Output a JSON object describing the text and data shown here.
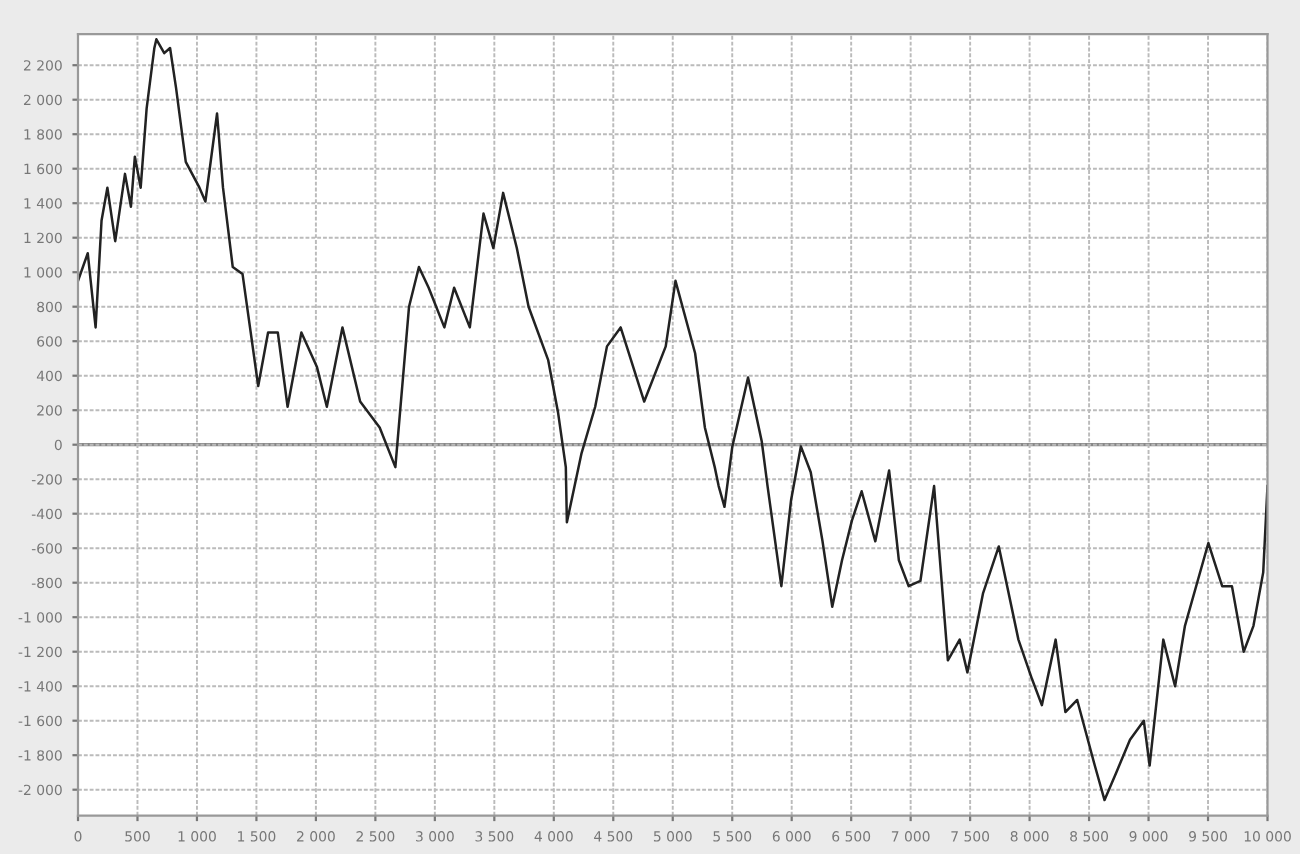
{
  "chart_data": {
    "type": "line",
    "xlim": [
      0,
      10000
    ],
    "ylim": [
      -2150,
      2380
    ],
    "xticks": [
      0,
      500,
      {
        "value": 1000,
        "label": "1 000"
      },
      {
        "value": 1500,
        "label": "1 500"
      },
      {
        "value": 2000,
        "label": "2 000"
      },
      {
        "value": 2500,
        "label": "2 500"
      },
      {
        "value": 3000,
        "label": "3 000"
      },
      {
        "value": 3500,
        "label": "3 500"
      },
      {
        "value": 4000,
        "label": "4 000"
      },
      {
        "value": 4500,
        "label": "4 500"
      },
      {
        "value": 5000,
        "label": "5 000"
      },
      {
        "value": 5500,
        "label": "5 500"
      },
      {
        "value": 6000,
        "label": "6 000"
      },
      {
        "value": 6500,
        "label": "6 500"
      },
      {
        "value": 7000,
        "label": "7 000"
      },
      {
        "value": 7500,
        "label": "7 500"
      },
      {
        "value": 8000,
        "label": "8 000"
      },
      {
        "value": 8500,
        "label": "8 500"
      },
      {
        "value": 9000,
        "label": "9 000"
      },
      {
        "value": 9500,
        "label": "9 500"
      },
      {
        "value": 10000,
        "label": "10 000"
      }
    ],
    "yticks": [
      {
        "value": -2000,
        "label": "-2 000"
      },
      {
        "value": -1800,
        "label": "-1 800"
      },
      {
        "value": -1600,
        "label": "-1 600"
      },
      {
        "value": -1400,
        "label": "-1 400"
      },
      {
        "value": -1200,
        "label": "-1 200"
      },
      {
        "value": -1000,
        "label": "-1 000"
      },
      -800,
      -600,
      -400,
      -200,
      0,
      200,
      400,
      600,
      800,
      {
        "value": 1000,
        "label": "1 000"
      },
      {
        "value": 1200,
        "label": "1 200"
      },
      {
        "value": 1400,
        "label": "1 400"
      },
      {
        "value": 1600,
        "label": "1 600"
      },
      {
        "value": 1800,
        "label": "1 800"
      },
      {
        "value": 2000,
        "label": "2 000"
      },
      {
        "value": 2200,
        "label": "2 200"
      }
    ],
    "grid": true,
    "legend": false,
    "ref_lines": [
      {
        "axis": "y",
        "value": 0,
        "color": "#888888"
      }
    ],
    "series": [
      {
        "color": "#222222",
        "x": [
          0,
          82,
          148,
          198,
          247,
          313,
          395,
          445,
          478,
          527,
          577,
          642,
          659,
          725,
          774,
          824,
          906,
          1021,
          1071,
          1169,
          1219,
          1301,
          1383,
          1515,
          1598,
          1680,
          1762,
          1878,
          2009,
          2092,
          2223,
          2372,
          2536,
          2668,
          2783,
          2866,
          2948,
          3080,
          3162,
          3294,
          3409,
          3492,
          3574,
          3689,
          3788,
          3953,
          4035,
          4101,
          4110,
          4233,
          4348,
          4447,
          4562,
          4760,
          4941,
          5023,
          5188,
          5270,
          5353,
          5386,
          5435,
          5501,
          5633,
          5748,
          5797,
          5913,
          5995,
          6077,
          6160,
          6259,
          6341,
          6423,
          6506,
          6588,
          6703,
          6819,
          6901,
          6983,
          7082,
          7197,
          7313,
          7412,
          7477,
          7609,
          7741,
          7906,
          8021,
          8103,
          8219,
          8301,
          8400,
          8548,
          8630,
          8729,
          8844,
          8960,
          9009,
          9124,
          9223,
          9306,
          9503,
          9619,
          9701,
          9800,
          9882,
          9964,
          10000
        ],
        "values": [
          950,
          1110,
          680,
          1300,
          1490,
          1180,
          1570,
          1380,
          1670,
          1490,
          1950,
          2300,
          2350,
          2270,
          2300,
          2070,
          1640,
          1490,
          1410,
          1920,
          1490,
          1030,
          990,
          340,
          650,
          650,
          220,
          650,
          450,
          220,
          680,
          250,
          100,
          -130,
          800,
          1030,
          910,
          680,
          910,
          680,
          1340,
          1140,
          1460,
          1140,
          800,
          490,
          190,
          -130,
          -450,
          -50,
          220,
          570,
          680,
          250,
          570,
          950,
          530,
          100,
          -130,
          -240,
          -360,
          -10,
          390,
          20,
          -240,
          -820,
          -320,
          -10,
          -160,
          -560,
          -940,
          -670,
          -440,
          -270,
          -560,
          -150,
          -670,
          -820,
          -790,
          -240,
          -1250,
          -1130,
          -1320,
          -860,
          -590,
          -1130,
          -1360,
          -1510,
          -1130,
          -1550,
          -1480,
          -1860,
          -2060,
          -1900,
          -1710,
          -1600,
          -1860,
          -1130,
          -1400,
          -1050,
          -570,
          -820,
          -820,
          -1200,
          -1050,
          -740,
          -240
        ]
      }
    ]
  }
}
